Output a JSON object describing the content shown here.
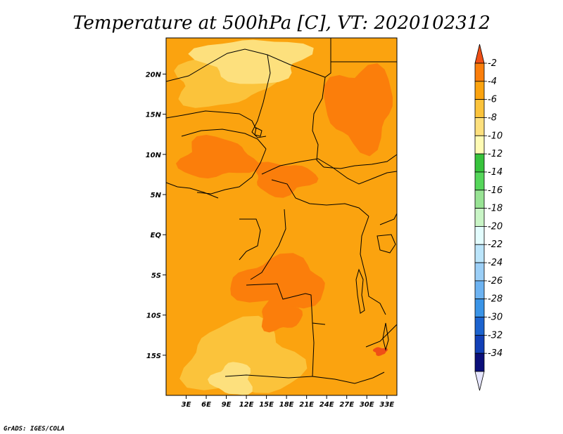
{
  "chart_data": {
    "type": "heatmap",
    "title": "Temperature at 500hPa [C], VT: 2020102312",
    "xlabel": "",
    "ylabel": "",
    "x_ticks": [
      {
        "value": 3,
        "label": "3E"
      },
      {
        "value": 6,
        "label": "6E"
      },
      {
        "value": 9,
        "label": "9E"
      },
      {
        "value": 12,
        "label": "12E"
      },
      {
        "value": 15,
        "label": "15E"
      },
      {
        "value": 18,
        "label": "18E"
      },
      {
        "value": 21,
        "label": "21E"
      },
      {
        "value": 24,
        "label": "24E"
      },
      {
        "value": 27,
        "label": "27E"
      },
      {
        "value": 30,
        "label": "30E"
      },
      {
        "value": 33,
        "label": "33E"
      }
    ],
    "y_ticks": [
      {
        "value": 20,
        "label": "20N"
      },
      {
        "value": 15,
        "label": "15N"
      },
      {
        "value": 10,
        "label": "10N"
      },
      {
        "value": 5,
        "label": "5N"
      },
      {
        "value": 0,
        "label": "EQ"
      },
      {
        "value": -5,
        "label": "5S"
      },
      {
        "value": -10,
        "label": "10S"
      },
      {
        "value": -15,
        "label": "15S"
      }
    ],
    "xlim": [
      0,
      34.5
    ],
    "ylim": [
      -20,
      24.5
    ],
    "colorbar": {
      "levels": [
        -2,
        -4,
        -6,
        -8,
        -10,
        -12,
        -14,
        -16,
        -18,
        -20,
        -22,
        -24,
        -26,
        -28,
        -30,
        -32,
        -34
      ],
      "colors": [
        "#ef4f16",
        "#fb7e0b",
        "#fba30f",
        "#fbc33b",
        "#fde07d",
        "#fffbb4",
        "#37c33c",
        "#55d65a",
        "#98e394",
        "#c9f5c6",
        "#e3fdfe",
        "#bbe5fb",
        "#9bcff7",
        "#6db3f2",
        "#3a94e7",
        "#1c63cf",
        "#1240b7",
        "#0b0f7a",
        "#e6e6ff"
      ],
      "range_labels": [
        "-2",
        "-4",
        "-6",
        "-8",
        "-10",
        "-12",
        "-14",
        "-16",
        "-18",
        "-20",
        "-22",
        "-24",
        "-26",
        "-28",
        "-30",
        "-32",
        "-34"
      ]
    },
    "field": {
      "background_class": "-6 to -4",
      "regions": [
        {
          "name": "sahara-north-cool",
          "range": "-10 to -8",
          "lon": [
            5,
            21
          ],
          "lat": [
            19,
            24.5
          ]
        },
        {
          "name": "sahara-mid",
          "range": "-8 to -6",
          "lon": [
            1,
            15
          ],
          "lat": [
            16,
            22
          ]
        },
        {
          "name": "sahel-warm-west",
          "range": "-4 to -2",
          "lon": [
            2,
            13
          ],
          "lat": [
            7,
            12
          ]
        },
        {
          "name": "central-african-warm",
          "range": "-4 to -2",
          "lon": [
            13,
            22
          ],
          "lat": [
            5,
            9
          ]
        },
        {
          "name": "sudan-warm",
          "range": "-4 to -2",
          "lon": [
            24,
            34
          ],
          "lat": [
            11,
            21
          ]
        },
        {
          "name": "congo-warm",
          "range": "-4 to -2",
          "lon": [
            10,
            24
          ],
          "lat": [
            -9,
            -3
          ]
        },
        {
          "name": "angola-warm",
          "range": "-4 to -2",
          "lon": [
            14,
            20
          ],
          "lat": [
            -12,
            -8
          ]
        },
        {
          "name": "southwest-cool",
          "range": "-10 to -8",
          "lon": [
            7,
            13
          ],
          "lat": [
            -20,
            -16
          ]
        },
        {
          "name": "south-mid",
          "range": "-8 to -6",
          "lon": [
            3,
            20
          ],
          "lat": [
            -20,
            -11
          ]
        },
        {
          "name": "mozambique-hot",
          "range": "-2 to 0",
          "lon": [
            31,
            33
          ],
          "lat": [
            -15,
            -14
          ]
        }
      ]
    },
    "credit": "GrADS: IGES/COLA"
  }
}
